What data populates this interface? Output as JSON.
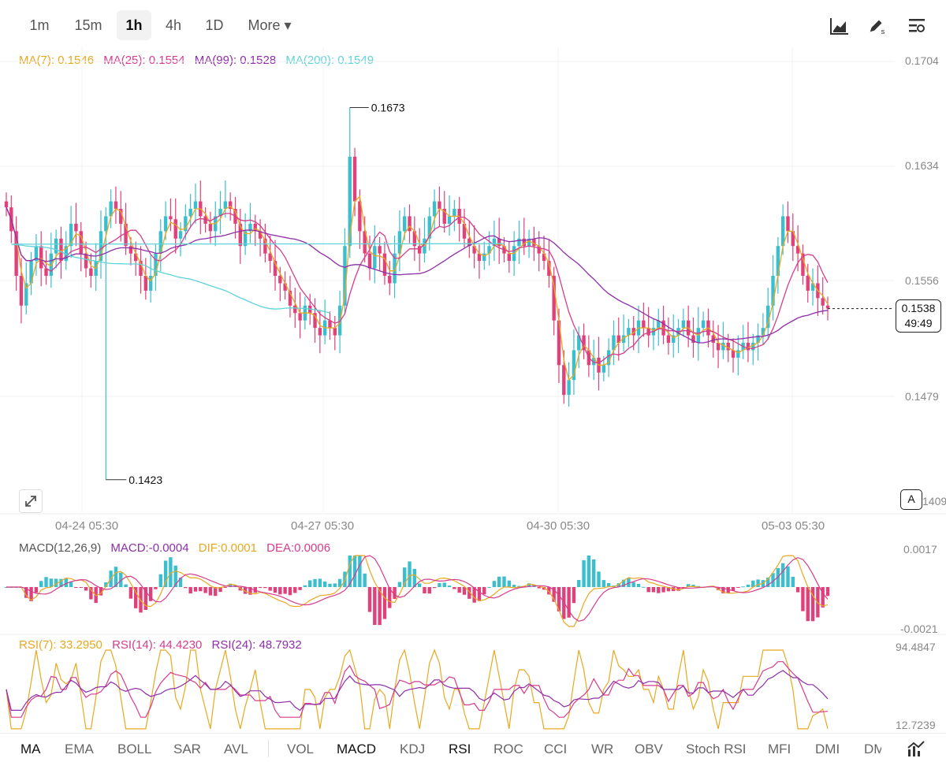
{
  "timeframes": [
    {
      "label": "1m"
    },
    {
      "label": "15m"
    },
    {
      "label": "1h"
    },
    {
      "label": "4h"
    },
    {
      "label": "1D"
    },
    {
      "label": "More ▾"
    }
  ],
  "active_timeframe": "1h",
  "icons": [
    "chart-style-icon",
    "draw-pen-icon",
    "indicator-settings-icon",
    "expand-icon",
    "indicator-chart-icon"
  ],
  "ma_legend": [
    {
      "text": "MA(7): 0.1546",
      "color": "#e8a820"
    },
    {
      "text": "MA(25): 0.1554",
      "color": "#d63c8c"
    },
    {
      "text": "MA(99): 0.1528",
      "color": "#8e2ea8"
    },
    {
      "text": "MA(200): 0.1549",
      "color": "#5fd3d8"
    }
  ],
  "price_axis": [
    "0.1704",
    "0.1634",
    "0.1556",
    "0.1479",
    "1409"
  ],
  "current_price": {
    "price": "0.1538",
    "countdown": "49:49"
  },
  "high_label": "0.1673",
  "low_label": "0.1423",
  "a_button": "A",
  "time_axis": [
    "04-24 05:30",
    "04-27 05:30",
    "04-30 05:30",
    "05-03 05:30"
  ],
  "macd_legend": [
    {
      "text": "MACD(12,26,9)",
      "color": "#555555"
    },
    {
      "text": "MACD:-0.0004",
      "color": "#8e2ea8"
    },
    {
      "text": "DIF:0.0001",
      "color": "#e8a820"
    },
    {
      "text": "DEA:0.0006",
      "color": "#d63c8c"
    }
  ],
  "macd_axis": [
    "0.0017",
    "-0.0021"
  ],
  "rsi_legend": [
    {
      "text": "RSI(7): 33.2950",
      "color": "#e8a820"
    },
    {
      "text": "RSI(14): 44.4230",
      "color": "#d63c8c"
    },
    {
      "text": "RSI(24): 48.7932",
      "color": "#8e2ea8"
    }
  ],
  "rsi_axis": [
    "94.4847",
    "12.7239"
  ],
  "indicators": [
    {
      "label": "MA",
      "active": true
    },
    {
      "label": "EMA"
    },
    {
      "label": "BOLL"
    },
    {
      "label": "SAR"
    },
    {
      "label": "AVL"
    },
    {
      "label": "VOL"
    },
    {
      "label": "MACD",
      "active": true
    },
    {
      "label": "KDJ"
    },
    {
      "label": "RSI",
      "active": true
    },
    {
      "label": "ROC"
    },
    {
      "label": "CCI"
    },
    {
      "label": "WR"
    },
    {
      "label": "OBV"
    },
    {
      "label": "Stoch RSI"
    },
    {
      "label": "MFI"
    },
    {
      "label": "DMI"
    },
    {
      "label": "DM"
    }
  ],
  "chart_data": {
    "type": "line",
    "x_ticks": [
      "04-24 05:30",
      "04-27 05:30",
      "04-30 05:30",
      "05-03 05:30"
    ],
    "y_ticks": [
      "0.1704",
      "0.1634",
      "0.1556",
      "0.1479"
    ],
    "grid": true,
    "candle_colors": {
      "up": "#3bbfcf",
      "down": "#e0417a"
    },
    "close_series": [
      0.1606,
      0.159,
      0.156,
      0.154,
      0.1555,
      0.157,
      0.158,
      0.1565,
      0.156,
      0.1575,
      0.1585,
      0.157,
      0.158,
      0.1595,
      0.159,
      0.1575,
      0.1565,
      0.156,
      0.157,
      0.159,
      0.16,
      0.161,
      0.1605,
      0.1595,
      0.158,
      0.1575,
      0.157,
      0.156,
      0.155,
      0.156,
      0.1575,
      0.159,
      0.16,
      0.1598,
      0.1585,
      0.159,
      0.16,
      0.1605,
      0.161,
      0.16,
      0.1595,
      0.159,
      0.16,
      0.1605,
      0.161,
      0.1605,
      0.1595,
      0.158,
      0.159,
      0.1595,
      0.159,
      0.1585,
      0.1575,
      0.157,
      0.156,
      0.1555,
      0.155,
      0.154,
      0.1535,
      0.153,
      0.154,
      0.1535,
      0.1525,
      0.152,
      0.153,
      0.1525,
      0.152,
      0.154,
      0.158,
      0.164,
      0.161,
      0.159,
      0.1575,
      0.1565,
      0.158,
      0.1575,
      0.156,
      0.1555,
      0.1575,
      0.159,
      0.16,
      0.159,
      0.158,
      0.1575,
      0.1585,
      0.16,
      0.161,
      0.1605,
      0.1595,
      0.16,
      0.1605,
      0.1595,
      0.1585,
      0.158,
      0.1575,
      0.157,
      0.1575,
      0.158,
      0.1585,
      0.158,
      0.1575,
      0.157,
      0.158,
      0.1585,
      0.158,
      0.1585,
      0.158,
      0.1575,
      0.157,
      0.156,
      0.153,
      0.15,
      0.148,
      0.149,
      0.151,
      0.152,
      0.151,
      0.15,
      0.1505,
      0.1495,
      0.15,
      0.151,
      0.152,
      0.1515,
      0.152,
      0.1525,
      0.152,
      0.153,
      0.1525,
      0.152,
      0.1525,
      0.153,
      0.152,
      0.1515,
      0.152,
      0.1525,
      0.153,
      0.152,
      0.1515,
      0.1525,
      0.153,
      0.152,
      0.1515,
      0.151,
      0.1515,
      0.151,
      0.1505,
      0.151,
      0.1515,
      0.151,
      0.1515,
      0.152,
      0.1525,
      0.154,
      0.156,
      0.158,
      0.16,
      0.159,
      0.158,
      0.1575,
      0.156,
      0.155,
      0.1555,
      0.1545,
      0.154,
      0.1538
    ],
    "high": 0.1673,
    "low": 0.1423,
    "last_price": 0.1538
  }
}
